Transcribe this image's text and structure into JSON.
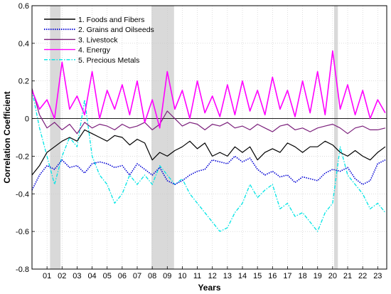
{
  "chart_data": {
    "type": "line",
    "xlabel": "Years",
    "ylabel": "Correlation Coefficient",
    "ylim": [
      -0.8,
      0.6
    ],
    "yticks": [
      -0.8,
      -0.6,
      -0.4,
      -0.2,
      0,
      0.2,
      0.4,
      0.6
    ],
    "ytick_labels": [
      "-0.8",
      "-0.6",
      "-0.4",
      "-0.2",
      "0",
      "0.2",
      "0.4",
      "0.6"
    ],
    "xlim": [
      2000,
      2023.6
    ],
    "xticks": [
      2001,
      2002,
      2003,
      2004,
      2005,
      2006,
      2007,
      2008,
      2009,
      2010,
      2011,
      2012,
      2013,
      2014,
      2015,
      2016,
      2017,
      2018,
      2019,
      2020,
      2021,
      2022,
      2023
    ],
    "xtick_labels": [
      "01",
      "02",
      "03",
      "04",
      "05",
      "06",
      "07",
      "08",
      "09",
      "10",
      "11",
      "12",
      "13",
      "14",
      "15",
      "16",
      "17",
      "18",
      "19",
      "20",
      "21",
      "22",
      "23"
    ],
    "grid": true,
    "legend_position": "top-left",
    "recession_bands": [
      [
        2001.2,
        2001.9
      ],
      [
        2007.95,
        2009.45
      ],
      [
        2020.1,
        2020.35
      ]
    ],
    "series": [
      {
        "name": "1. Foods and Fibers",
        "color": "#000000",
        "style": "solid",
        "x": [
          2000,
          2000.5,
          2001,
          2001.5,
          2002,
          2002.5,
          2003,
          2003.5,
          2004,
          2004.5,
          2005,
          2005.5,
          2006,
          2006.5,
          2007,
          2007.5,
          2008,
          2008.5,
          2009,
          2009.5,
          2010,
          2010.5,
          2011,
          2011.5,
          2012,
          2012.5,
          2013,
          2013.5,
          2014,
          2014.5,
          2015,
          2015.5,
          2016,
          2016.5,
          2017,
          2017.5,
          2018,
          2018.5,
          2019,
          2019.5,
          2020,
          2020.5,
          2021,
          2021.5,
          2022,
          2022.5,
          2023,
          2023.5
        ],
        "y": [
          -0.3,
          -0.25,
          -0.18,
          -0.15,
          -0.12,
          -0.1,
          -0.12,
          -0.06,
          -0.08,
          -0.1,
          -0.12,
          -0.09,
          -0.1,
          -0.14,
          -0.11,
          -0.13,
          -0.22,
          -0.18,
          -0.2,
          -0.17,
          -0.15,
          -0.12,
          -0.16,
          -0.13,
          -0.2,
          -0.18,
          -0.2,
          -0.15,
          -0.18,
          -0.15,
          -0.22,
          -0.18,
          -0.16,
          -0.18,
          -0.13,
          -0.15,
          -0.18,
          -0.15,
          -0.15,
          -0.12,
          -0.14,
          -0.18,
          -0.2,
          -0.17,
          -0.2,
          -0.22,
          -0.18,
          -0.15
        ]
      },
      {
        "name": "2. Grains and Oilseeds",
        "color": "#0000d4",
        "style": "dotted",
        "x": [
          2000,
          2000.5,
          2001,
          2001.5,
          2002,
          2002.5,
          2003,
          2003.5,
          2004,
          2004.5,
          2005,
          2005.5,
          2006,
          2006.5,
          2007,
          2007.5,
          2008,
          2008.5,
          2009,
          2009.5,
          2010,
          2010.5,
          2011,
          2011.5,
          2012,
          2012.5,
          2013,
          2013.5,
          2014,
          2014.5,
          2015,
          2015.5,
          2016,
          2016.5,
          2017,
          2017.5,
          2018,
          2018.5,
          2019,
          2019.5,
          2020,
          2020.5,
          2021,
          2021.5,
          2022,
          2022.5,
          2023,
          2023.5
        ],
        "y": [
          -0.38,
          -0.3,
          -0.25,
          -0.27,
          -0.22,
          -0.26,
          -0.25,
          -0.29,
          -0.24,
          -0.23,
          -0.24,
          -0.26,
          -0.25,
          -0.3,
          -0.24,
          -0.27,
          -0.3,
          -0.26,
          -0.33,
          -0.35,
          -0.33,
          -0.3,
          -0.28,
          -0.27,
          -0.22,
          -0.23,
          -0.24,
          -0.2,
          -0.23,
          -0.21,
          -0.27,
          -0.3,
          -0.28,
          -0.31,
          -0.3,
          -0.34,
          -0.31,
          -0.32,
          -0.33,
          -0.29,
          -0.27,
          -0.28,
          -0.26,
          -0.32,
          -0.35,
          -0.33,
          -0.24,
          -0.22
        ]
      },
      {
        "name": "3. Livestock",
        "color": "#7b1f7b",
        "style": "solid",
        "x": [
          2000,
          2000.5,
          2001,
          2001.5,
          2002,
          2002.5,
          2003,
          2003.5,
          2004,
          2004.5,
          2005,
          2005.5,
          2006,
          2006.5,
          2007,
          2007.5,
          2008,
          2008.5,
          2009,
          2009.5,
          2010,
          2010.5,
          2011,
          2011.5,
          2012,
          2012.5,
          2013,
          2013.5,
          2014,
          2014.5,
          2015,
          2015.5,
          2016,
          2016.5,
          2017,
          2017.5,
          2018,
          2018.5,
          2019,
          2019.5,
          2020,
          2020.5,
          2021,
          2021.5,
          2022,
          2022.5,
          2023,
          2023.5
        ],
        "y": [
          0.16,
          0.02,
          -0.05,
          -0.02,
          -0.06,
          -0.03,
          -0.08,
          -0.02,
          -0.05,
          -0.03,
          -0.04,
          -0.06,
          -0.03,
          -0.05,
          -0.04,
          -0.02,
          -0.06,
          -0.03,
          0.04,
          0.0,
          -0.04,
          -0.02,
          -0.03,
          -0.06,
          -0.03,
          -0.04,
          -0.02,
          -0.05,
          -0.04,
          -0.06,
          -0.03,
          -0.05,
          -0.07,
          -0.04,
          -0.03,
          -0.06,
          -0.05,
          -0.07,
          -0.05,
          -0.04,
          -0.03,
          -0.05,
          -0.08,
          -0.05,
          -0.04,
          -0.06,
          -0.06,
          -0.05
        ]
      },
      {
        "name": "4. Energy",
        "color": "#ff00ff",
        "style": "solid",
        "x": [
          2000,
          2000.5,
          2001,
          2001.5,
          2002,
          2002.5,
          2003,
          2003.5,
          2004,
          2004.5,
          2005,
          2005.5,
          2006,
          2006.5,
          2007,
          2007.5,
          2008,
          2008.5,
          2009,
          2009.5,
          2010,
          2010.5,
          2011,
          2011.5,
          2012,
          2012.5,
          2013,
          2013.5,
          2014,
          2014.5,
          2015,
          2015.5,
          2016,
          2016.5,
          2017,
          2017.5,
          2018,
          2018.5,
          2019,
          2019.5,
          2020,
          2020.5,
          2021,
          2021.5,
          2022,
          2022.5,
          2023,
          2023.5
        ],
        "y": [
          0.15,
          0.05,
          0.1,
          0.0,
          0.3,
          0.05,
          0.12,
          0.02,
          0.25,
          0.0,
          0.15,
          0.05,
          0.18,
          0.02,
          0.2,
          -0.02,
          0.1,
          -0.05,
          0.25,
          0.05,
          0.15,
          0.0,
          0.2,
          0.03,
          0.12,
          0.01,
          0.18,
          0.02,
          0.2,
          0.04,
          0.15,
          0.02,
          0.22,
          0.05,
          0.15,
          0.01,
          0.2,
          0.03,
          0.25,
          0.02,
          0.36,
          0.05,
          0.18,
          0.02,
          0.15,
          0.0,
          0.1,
          0.03
        ]
      },
      {
        "name": "5. Precious Metals",
        "color": "#00e5e5",
        "style": "dashdot",
        "x": [
          2000,
          2000.5,
          2001,
          2001.5,
          2002,
          2002.5,
          2003,
          2003.5,
          2004,
          2004.5,
          2005,
          2005.5,
          2006,
          2006.5,
          2007,
          2007.5,
          2008,
          2008.5,
          2009,
          2009.5,
          2010,
          2010.5,
          2011,
          2011.5,
          2012,
          2012.5,
          2013,
          2013.5,
          2014,
          2014.5,
          2015,
          2015.5,
          2016,
          2016.5,
          2017,
          2017.5,
          2018,
          2018.5,
          2019,
          2019.5,
          2020,
          2020.5,
          2021,
          2021.5,
          2022,
          2022.5,
          2023,
          2023.5
        ],
        "y": [
          0.15,
          -0.05,
          -0.2,
          -0.35,
          -0.2,
          -0.1,
          -0.15,
          0.1,
          -0.2,
          -0.3,
          -0.35,
          -0.45,
          -0.4,
          -0.3,
          -0.35,
          -0.3,
          -0.35,
          -0.25,
          -0.3,
          -0.35,
          -0.32,
          -0.4,
          -0.45,
          -0.5,
          -0.55,
          -0.6,
          -0.58,
          -0.5,
          -0.45,
          -0.35,
          -0.42,
          -0.38,
          -0.35,
          -0.48,
          -0.45,
          -0.52,
          -0.5,
          -0.55,
          -0.6,
          -0.5,
          -0.45,
          -0.15,
          -0.3,
          -0.35,
          -0.4,
          -0.48,
          -0.45,
          -0.5
        ]
      }
    ]
  }
}
